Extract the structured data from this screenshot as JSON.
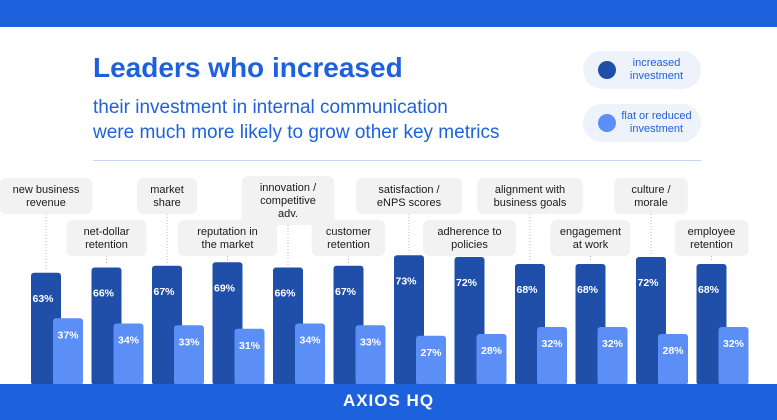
{
  "header": {
    "title": "Leaders who increased",
    "subtitle_line1": "their investment in internal communication",
    "subtitle_line2": "were much more likely to grow other key metrics"
  },
  "legend": [
    {
      "label_line1": "increased",
      "label_line2": "investment",
      "color": "#1f4fa8"
    },
    {
      "label_line1": "flat or reduced",
      "label_line2": "investment",
      "color": "#5b8ff5"
    }
  ],
  "footer": {
    "logo": "AXIOS HQ"
  },
  "colors": {
    "brand": "#1e61dc",
    "increased": "#1f4fa8",
    "flat": "#5b8ff5",
    "label_bg": "#f2f2f2"
  },
  "chart_data": {
    "type": "bar",
    "categories": [
      [
        "new business",
        "revenue"
      ],
      [
        "net-dollar",
        "retention"
      ],
      [
        "market",
        "share"
      ],
      [
        "reputation in",
        "the market"
      ],
      [
        "innovation /",
        "competitive",
        "adv."
      ],
      [
        "customer",
        "retention"
      ],
      [
        "satisfaction /",
        "eNPS scores"
      ],
      [
        "adherence to",
        "policies"
      ],
      [
        "alignment with",
        "business goals"
      ],
      [
        "engagement",
        "at work"
      ],
      [
        "culture /",
        "morale"
      ],
      [
        "employee",
        "retention"
      ]
    ],
    "series": [
      {
        "name": "increased investment",
        "values": [
          63,
          66,
          67,
          69,
          66,
          67,
          73,
          72,
          68,
          68,
          72,
          68
        ]
      },
      {
        "name": "flat or reduced investment",
        "values": [
          37,
          34,
          33,
          31,
          34,
          33,
          27,
          28,
          32,
          32,
          28,
          32
        ]
      }
    ],
    "value_suffix": "%"
  }
}
